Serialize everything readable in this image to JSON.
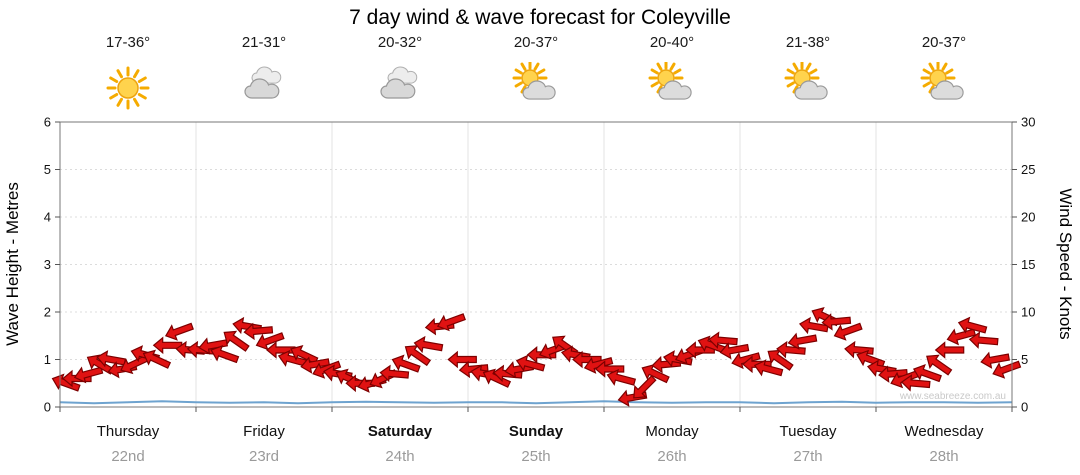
{
  "chart_data": {
    "type": "wind_wave_forecast",
    "title": "7 day wind & wave forecast for Coleyville",
    "watermark": "www.seabreeze.com.au",
    "left_axis": {
      "label": "Wave Height - Metres",
      "ticks": [
        0,
        1,
        2,
        3,
        4,
        5,
        6
      ],
      "range": [
        0,
        6
      ]
    },
    "right_axis": {
      "label": "Wind Speed - Knots",
      "ticks": [
        0,
        5,
        10,
        15,
        20,
        25,
        30
      ],
      "range": [
        0,
        30
      ]
    },
    "colors": {
      "arrow": "#e01212",
      "arrow_outline": "#7d0000",
      "wave_line": "#6ea3cf"
    },
    "days": [
      {
        "name": "Thursday",
        "date": "22nd",
        "temp": "17-36°",
        "icon": "sunny",
        "weekend": false
      },
      {
        "name": "Friday",
        "date": "23rd",
        "temp": "21-31°",
        "icon": "cloudy",
        "weekend": false
      },
      {
        "name": "Saturday",
        "date": "24th",
        "temp": "20-32°",
        "icon": "cloudy",
        "weekend": true
      },
      {
        "name": "Sunday",
        "date": "25th",
        "temp": "20-37°",
        "icon": "partly-sunny",
        "weekend": true
      },
      {
        "name": "Monday",
        "date": "26th",
        "temp": "20-40°",
        "icon": "partly-sunny",
        "weekend": false
      },
      {
        "name": "Tuesday",
        "date": "27th",
        "temp": "21-38°",
        "icon": "partly-sunny",
        "weekend": false
      },
      {
        "name": "Wednesday",
        "date": "28th",
        "temp": "20-37°",
        "icon": "partly-sunny",
        "weekend": false
      }
    ],
    "wind": {
      "samples_per_day": 12,
      "speeds_knots": [
        2.5,
        3,
        3.5,
        4.5,
        5,
        4,
        4.5,
        5.5,
        5,
        6.5,
        8,
        6,
        6,
        6.5,
        5.5,
        7,
        8.5,
        8,
        7,
        6,
        5,
        5.5,
        4.5,
        4,
        3.5,
        3,
        2.5,
        2.5,
        3,
        3.5,
        4.5,
        5.5,
        6.5,
        8.5,
        9,
        5,
        4,
        3.5,
        3,
        3.5,
        4,
        4.5,
        5.5,
        6,
        6.5,
        5.5,
        5,
        4.5,
        4,
        3,
        1,
        2,
        3.5,
        4.5,
        5,
        5.5,
        6,
        6.5,
        7,
        6,
        5,
        4.5,
        4,
        5,
        6,
        7,
        8.5,
        9.5,
        9,
        8,
        6,
        5,
        4,
        3.5,
        3,
        2.5,
        3.5,
        4.5,
        6,
        7.5,
        8.5,
        7,
        5,
        4
      ],
      "directions_deg": [
        200,
        180,
        165,
        210,
        190,
        170,
        155,
        195,
        205,
        180,
        160,
        185,
        185,
        170,
        200,
        215,
        190,
        175,
        160,
        180,
        195,
        205,
        170,
        160,
        190,
        205,
        180,
        165,
        155,
        185,
        200,
        215,
        190,
        175,
        160,
        180,
        175,
        190,
        205,
        185,
        170,
        195,
        180,
        160,
        215,
        190,
        180,
        165,
        180,
        195,
        170,
        135,
        205,
        175,
        190,
        160,
        180,
        200,
        185,
        170,
        165,
        180,
        195,
        215,
        185,
        170,
        190,
        205,
        175,
        160,
        185,
        200,
        190,
        175,
        160,
        185,
        200,
        215,
        180,
        165,
        195,
        185,
        170,
        160
      ]
    },
    "wave_height_m": [
      0.1,
      0.08,
      0.1,
      0.12,
      0.1,
      0.09,
      0.1,
      0.08,
      0.1,
      0.11,
      0.1,
      0.09,
      0.1,
      0.1,
      0.08,
      0.1,
      0.12,
      0.1,
      0.09,
      0.1,
      0.1,
      0.08,
      0.1,
      0.11,
      0.09,
      0.1,
      0.1,
      0.09,
      0.1
    ]
  }
}
